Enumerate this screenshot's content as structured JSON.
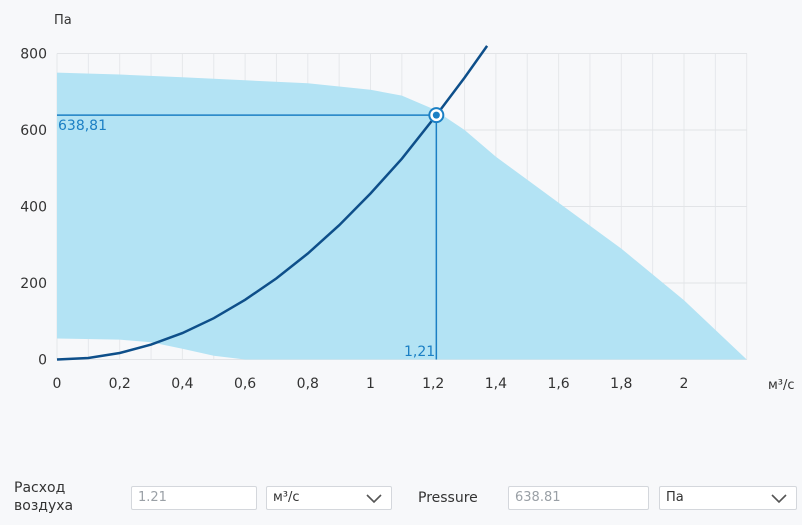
{
  "chart_data": {
    "type": "line",
    "xlabel": "м³/с",
    "ylabel": "Па",
    "xlim": [
      0,
      2.2
    ],
    "ylim": [
      0,
      800
    ],
    "x_ticks": [
      0,
      0.2,
      0.4,
      0.6,
      0.8,
      1,
      1.2,
      1.4,
      1.6,
      1.8,
      2
    ],
    "x_tick_labels": [
      "0",
      "0,2",
      "0,4",
      "0,6",
      "0,8",
      "1",
      "1,2",
      "1,4",
      "1,6",
      "1,8",
      "2"
    ],
    "y_ticks": [
      0,
      200,
      400,
      600,
      800
    ],
    "y_tick_labels": [
      "0",
      "200",
      "400",
      "600",
      "800"
    ],
    "grid": true,
    "area_color": "#b3e3f4",
    "line_color": "#0e4f8a",
    "marker_color": "#1b7fc4",
    "fan_area": {
      "upper": [
        [
          0,
          750
        ],
        [
          0.2,
          745
        ],
        [
          0.4,
          738
        ],
        [
          0.6,
          730
        ],
        [
          0.8,
          722
        ],
        [
          1.0,
          705
        ],
        [
          1.1,
          690
        ],
        [
          1.2,
          655
        ],
        [
          1.3,
          600
        ],
        [
          1.4,
          530
        ],
        [
          1.5,
          470
        ],
        [
          1.6,
          410
        ],
        [
          1.8,
          290
        ],
        [
          2.0,
          155
        ],
        [
          2.2,
          0
        ]
      ],
      "lower": [
        [
          0,
          55
        ],
        [
          0.2,
          52
        ],
        [
          0.3,
          45
        ],
        [
          0.4,
          28
        ],
        [
          0.5,
          10
        ],
        [
          0.6,
          0
        ],
        [
          2.2,
          0
        ]
      ]
    },
    "system_curve": [
      [
        0,
        0
      ],
      [
        0.1,
        4
      ],
      [
        0.2,
        17
      ],
      [
        0.3,
        39
      ],
      [
        0.4,
        69
      ],
      [
        0.5,
        108
      ],
      [
        0.6,
        156
      ],
      [
        0.7,
        212
      ],
      [
        0.8,
        277
      ],
      [
        0.9,
        351
      ],
      [
        1.0,
        434
      ],
      [
        1.1,
        525
      ],
      [
        1.21,
        638.81
      ],
      [
        1.3,
        737
      ],
      [
        1.372,
        820
      ]
    ],
    "operating_point": {
      "x": 1.21,
      "y": 638.81,
      "x_label": "1,21",
      "y_label": "638,81"
    }
  },
  "controls": {
    "airflow_label": "Расход воздуха",
    "airflow_value": "1.21",
    "airflow_unit": "м³/с",
    "pressure_label": "Pressure",
    "pressure_value": "638.81",
    "pressure_unit": "Па"
  }
}
